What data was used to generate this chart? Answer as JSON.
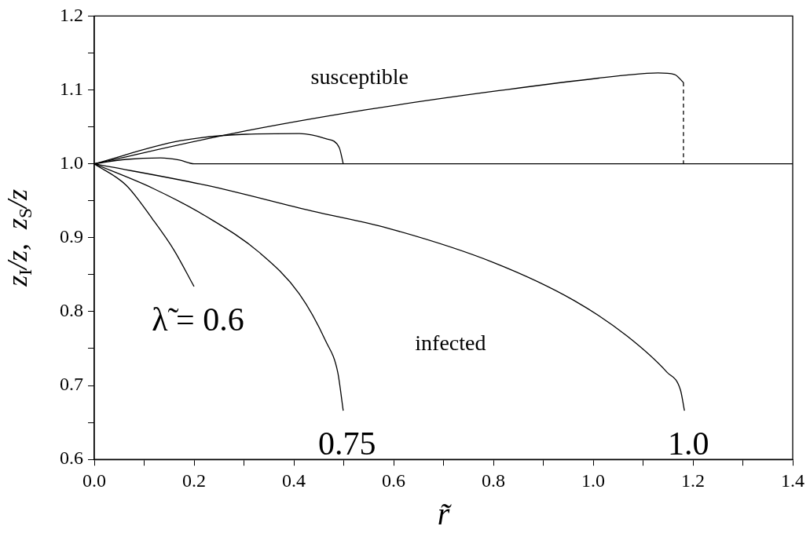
{
  "chart_data": {
    "type": "line",
    "xlabel": "r̃",
    "ylabel": "z$_{I}$/z,  z$_{S}$/z",
    "xlim": [
      0,
      1.4
    ],
    "ylim": [
      0.6,
      1.2
    ],
    "xticks": [
      {
        "value": 0,
        "label": "0.0"
      },
      {
        "value": 0.1,
        "label": null
      },
      0.2,
      {
        "value": 0.3,
        "label": null
      },
      0.4,
      {
        "value": 0.5,
        "label": null
      },
      0.6,
      {
        "value": 0.7,
        "label": null
      },
      0.8,
      {
        "value": 0.9,
        "label": null
      },
      {
        "value": 1.0,
        "label": "1.0"
      },
      {
        "value": 1.1,
        "label": null
      },
      1.2,
      {
        "value": 1.3,
        "label": null
      },
      1.4
    ],
    "yticks": [
      0.6,
      {
        "value": 0.65,
        "label": null
      },
      0.7,
      {
        "value": 0.75,
        "label": null
      },
      0.8,
      {
        "value": 0.85,
        "label": null
      },
      0.9,
      {
        "value": 0.95,
        "label": null
      },
      {
        "value": 1.0,
        "label": "1.0"
      },
      {
        "value": 1.05,
        "label": null
      },
      1.1,
      {
        "value": 1.15,
        "label": null
      },
      1.2
    ],
    "grid": false,
    "legend": false,
    "marker": "none",
    "series": [
      {
        "name": "λ̃ = 0.6",
        "color": "#000000",
        "x": [
          0,
          0.064,
          0.117,
          0.16,
          0.2
        ],
        "values": [
          1.0,
          0.971,
          0.925,
          0.883,
          0.834
        ]
      },
      {
        "name": "0.75",
        "color": "#000000",
        "x": [
          0,
          0.117,
          0.224,
          0.331,
          0.411,
          0.464,
          0.488,
          0.499
        ],
        "values": [
          1.0,
          0.967,
          0.929,
          0.88,
          0.824,
          0.76,
          0.718,
          0.666
        ]
      },
      {
        "name": "1.0",
        "color": "#000000",
        "x": [
          0,
          0.224,
          0.437,
          0.588,
          0.802,
          0.962,
          1.068,
          1.148,
          1.175,
          1.183
        ],
        "values": [
          1.0,
          0.971,
          0.936,
          0.913,
          0.866,
          0.815,
          0.767,
          0.718,
          0.694,
          0.666
        ]
      },
      {
        "color": "#000000",
        "x": [
          0,
          0.064,
          0.133,
          0.171,
          0.2,
          1.4
        ],
        "values": [
          1.0,
          1.006,
          1.008,
          1.005,
          1.0,
          1.0
        ]
      },
      {
        "color": "#000000",
        "x": [
          0,
          0.171,
          0.304,
          0.411,
          0.464,
          0.491,
          0.499
        ],
        "values": [
          1.0,
          1.031,
          1.04,
          1.041,
          1.034,
          1.022,
          1.0
        ]
      },
      {
        "color": "#000000",
        "x": [
          0,
          0.277,
          0.544,
          0.811,
          1.067,
          1.13,
          1.163,
          1.181
        ],
        "values": [
          1.0,
          1.041,
          1.073,
          1.099,
          1.12,
          1.123,
          1.121,
          1.11
        ]
      },
      {
        "color": "#000000",
        "line_style": "dashed",
        "x": [
          1.181,
          1.181
        ],
        "values": [
          1.11,
          1.0
        ]
      }
    ],
    "annotations": [
      "susceptible",
      "infected"
    ]
  }
}
